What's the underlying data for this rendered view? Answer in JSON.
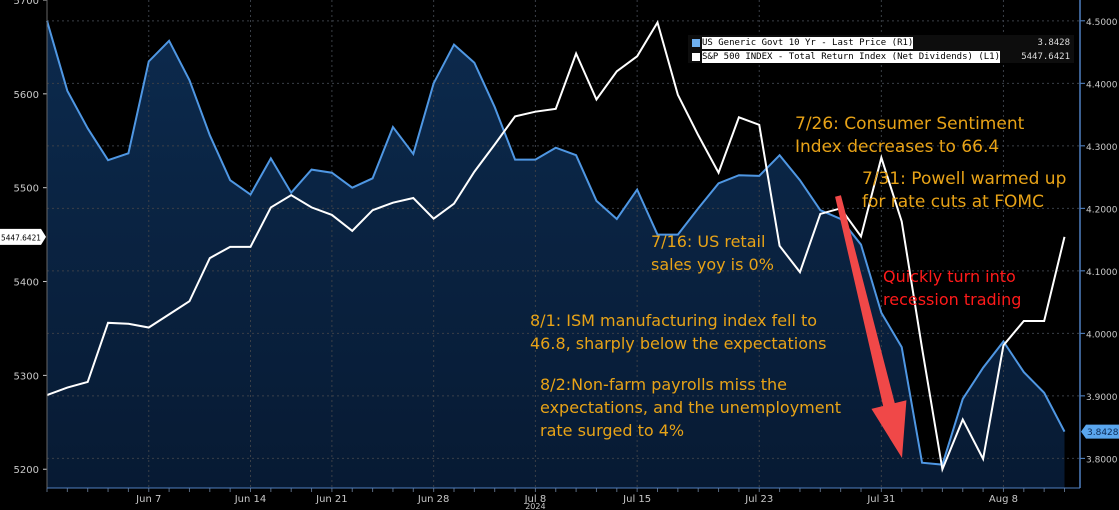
{
  "chart_data": {
    "type": "line",
    "x_label_year": "2024",
    "x": [
      "2024-05-31",
      "2024-06-03",
      "2024-06-04",
      "2024-06-05",
      "2024-06-06",
      "2024-06-07",
      "2024-06-10",
      "2024-06-11",
      "2024-06-12",
      "2024-06-13",
      "2024-06-14",
      "2024-06-17",
      "2024-06-18",
      "2024-06-20",
      "2024-06-21",
      "2024-06-24",
      "2024-06-25",
      "2024-06-26",
      "2024-06-27",
      "2024-06-28",
      "2024-07-01",
      "2024-07-02",
      "2024-07-03",
      "2024-07-05",
      "2024-07-08",
      "2024-07-09",
      "2024-07-10",
      "2024-07-11",
      "2024-07-12",
      "2024-07-15",
      "2024-07-16",
      "2024-07-17",
      "2024-07-18",
      "2024-07-19",
      "2024-07-22",
      "2024-07-23",
      "2024-07-24",
      "2024-07-25",
      "2024-07-26",
      "2024-07-29",
      "2024-07-30",
      "2024-07-31",
      "2024-08-01",
      "2024-08-02",
      "2024-08-05",
      "2024-08-06",
      "2024-08-07",
      "2024-08-08",
      "2024-08-09",
      "2024-08-12",
      "2024-08-13"
    ],
    "x_ticks": [
      {
        "label": "Jun 7",
        "index": 5
      },
      {
        "label": "Jun 14",
        "index": 10
      },
      {
        "label": "Jun 21",
        "index": 14
      },
      {
        "label": "Jun 28",
        "index": 19
      },
      {
        "label": "Jul 8",
        "index": 24
      },
      {
        "label": "Jul 15",
        "index": 29
      },
      {
        "label": "Jul 23",
        "index": 35
      },
      {
        "label": "Jul 31",
        "index": 41
      },
      {
        "label": "Aug 8",
        "index": 47
      }
    ],
    "left_axis": {
      "ylim": [
        5180,
        5700
      ],
      "ticks": [
        "5700",
        "5600",
        "5500",
        "5400",
        "5300",
        "5200"
      ]
    },
    "right_axis": {
      "ylim": [
        3.7526,
        4.5333
      ],
      "ticks": [
        "4.5000",
        "4.4000",
        "4.3000",
        "4.2000",
        "4.1000",
        "4.0000",
        "3.9000",
        "3.8000"
      ]
    },
    "grid": true,
    "legend_position": "top-right",
    "series": [
      {
        "name": "US Generic Govt 10 Yr - Last Price (R1)",
        "axis": "right",
        "color": "#4f97e3",
        "fill": "area",
        "last_value": "3.8428",
        "values": [
          4.5,
          4.388,
          4.328,
          4.277,
          4.288,
          4.435,
          4.468,
          4.405,
          4.317,
          4.245,
          4.222,
          4.28,
          4.225,
          4.262,
          4.257,
          4.233,
          4.248,
          4.33,
          4.287,
          4.4,
          4.462,
          4.433,
          4.362,
          4.278,
          4.278,
          4.297,
          4.285,
          4.212,
          4.183,
          4.23,
          4.158,
          4.158,
          4.2,
          4.24,
          4.253,
          4.252,
          4.285,
          4.245,
          4.197,
          4.183,
          4.142,
          4.033,
          3.978,
          3.793,
          3.79,
          3.895,
          3.945,
          3.987,
          3.938,
          3.905,
          3.8428
        ]
      },
      {
        "name": "S&P 500 INDEX - Total Return Index (Net Dividends) (L1)",
        "axis": "left",
        "color": "#ffffff",
        "last_value": "5447.6421",
        "values": [
          5279,
          5287,
          5293,
          5356,
          5355,
          5351,
          5365,
          5379,
          5425,
          5437,
          5437,
          5479,
          5492,
          5479,
          5471,
          5454,
          5476,
          5484,
          5489,
          5467,
          5483,
          5517,
          5546,
          5576,
          5581,
          5584,
          5643,
          5594,
          5624,
          5640,
          5676,
          5599,
          5556,
          5516,
          5575,
          5567,
          5438,
          5410,
          5472,
          5478,
          5448,
          5532,
          5464,
          5329,
          5200,
          5253,
          5211,
          5332,
          5358,
          5358,
          5447.6421
        ]
      }
    ],
    "annotations": [
      {
        "lines": [
          "7/26: Consumer Sentiment",
          "Index decreases to 66.4"
        ],
        "color": "#e8a317"
      },
      {
        "lines": [
          "7/31: Powell warmed up",
          "for rate cuts at FOMC"
        ],
        "color": "#e8a317"
      },
      {
        "lines": [
          "7/16: US retail",
          "sales yoy is 0%"
        ],
        "color": "#e8a317"
      },
      {
        "lines": [
          "Quickly turn into",
          "recession trading"
        ],
        "color": "#ff1a1a"
      },
      {
        "lines": [
          "8/1: ISM manufacturing index fell to",
          "46.8, sharply below the expectations"
        ],
        "color": "#e8a317"
      },
      {
        "lines": [
          "8/2:Non-farm payrolls miss the",
          "expectations, and the unemployment",
          "rate surged to 4%"
        ],
        "color": "#e8a317"
      }
    ],
    "arrow_color": "#f04848"
  }
}
